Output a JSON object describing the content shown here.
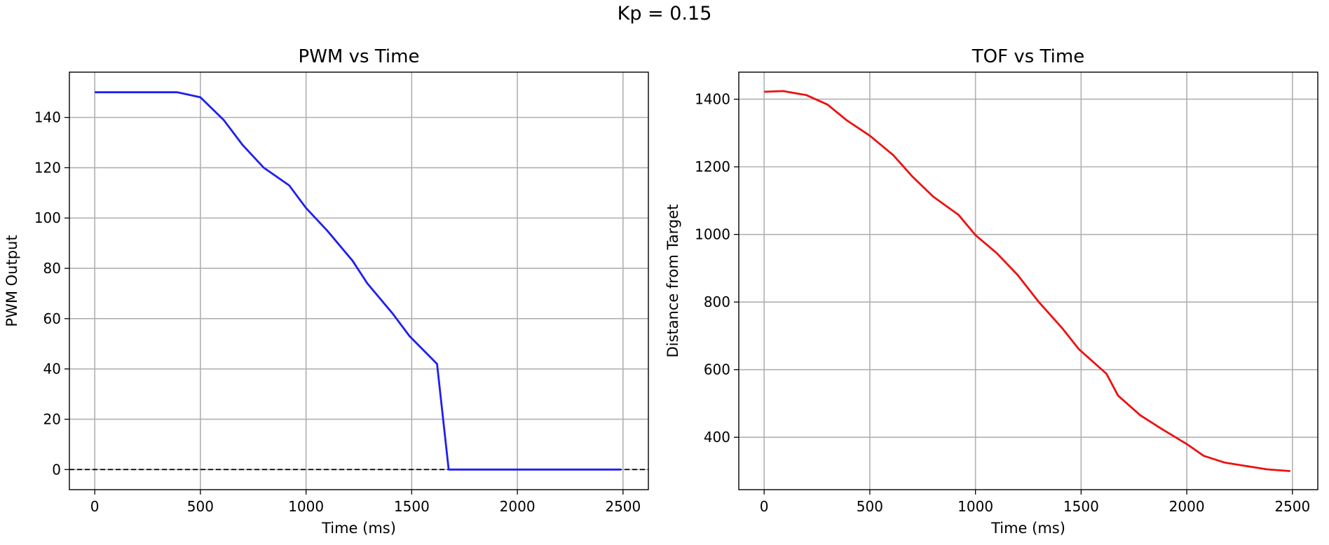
{
  "figure": {
    "title": "Kp = 0.15"
  },
  "chart_data": [
    {
      "type": "line",
      "title": "PWM vs Time",
      "xlabel": "Time (ms)",
      "ylabel": "PWM Output",
      "xlim": [
        -120,
        2620
      ],
      "ylim": [
        -8,
        158
      ],
      "xticks": [
        0,
        500,
        1000,
        1500,
        2000,
        2500
      ],
      "yticks": [
        0,
        20,
        40,
        60,
        80,
        100,
        120,
        140
      ],
      "grid": true,
      "reference_line": {
        "y": 0,
        "style": "dashed",
        "color": "#000000"
      },
      "series": [
        {
          "color": "#1f1ff0",
          "x": [
            0,
            390,
            500,
            610,
            700,
            800,
            920,
            1000,
            1100,
            1220,
            1290,
            1410,
            1490,
            1620,
            1675,
            2490
          ],
          "y": [
            150,
            150,
            148,
            139,
            129,
            120,
            113,
            104,
            95,
            83,
            74,
            62,
            53,
            42,
            0,
            0
          ]
        }
      ]
    },
    {
      "type": "line",
      "title": "TOF vs Time",
      "xlabel": "Time (ms)",
      "ylabel": "Distance from Target",
      "xlim": [
        -120,
        2620
      ],
      "ylim": [
        245,
        1480
      ],
      "xticks": [
        0,
        500,
        1000,
        1500,
        2000,
        2500
      ],
      "yticks": [
        400,
        600,
        800,
        1000,
        1200,
        1400
      ],
      "grid": true,
      "series": [
        {
          "color": "#ee1010",
          "x": [
            0,
            90,
            200,
            300,
            390,
            500,
            610,
            700,
            800,
            920,
            1000,
            1100,
            1200,
            1300,
            1410,
            1490,
            1620,
            1675,
            1780,
            1880,
            2000,
            2080,
            2180,
            2280,
            2380,
            2490
          ],
          "y": [
            1422,
            1424,
            1412,
            1384,
            1338,
            1292,
            1235,
            1172,
            1112,
            1058,
            998,
            945,
            880,
            800,
            723,
            660,
            588,
            523,
            465,
            425,
            380,
            345,
            325,
            315,
            305,
            300
          ]
        }
      ]
    }
  ]
}
